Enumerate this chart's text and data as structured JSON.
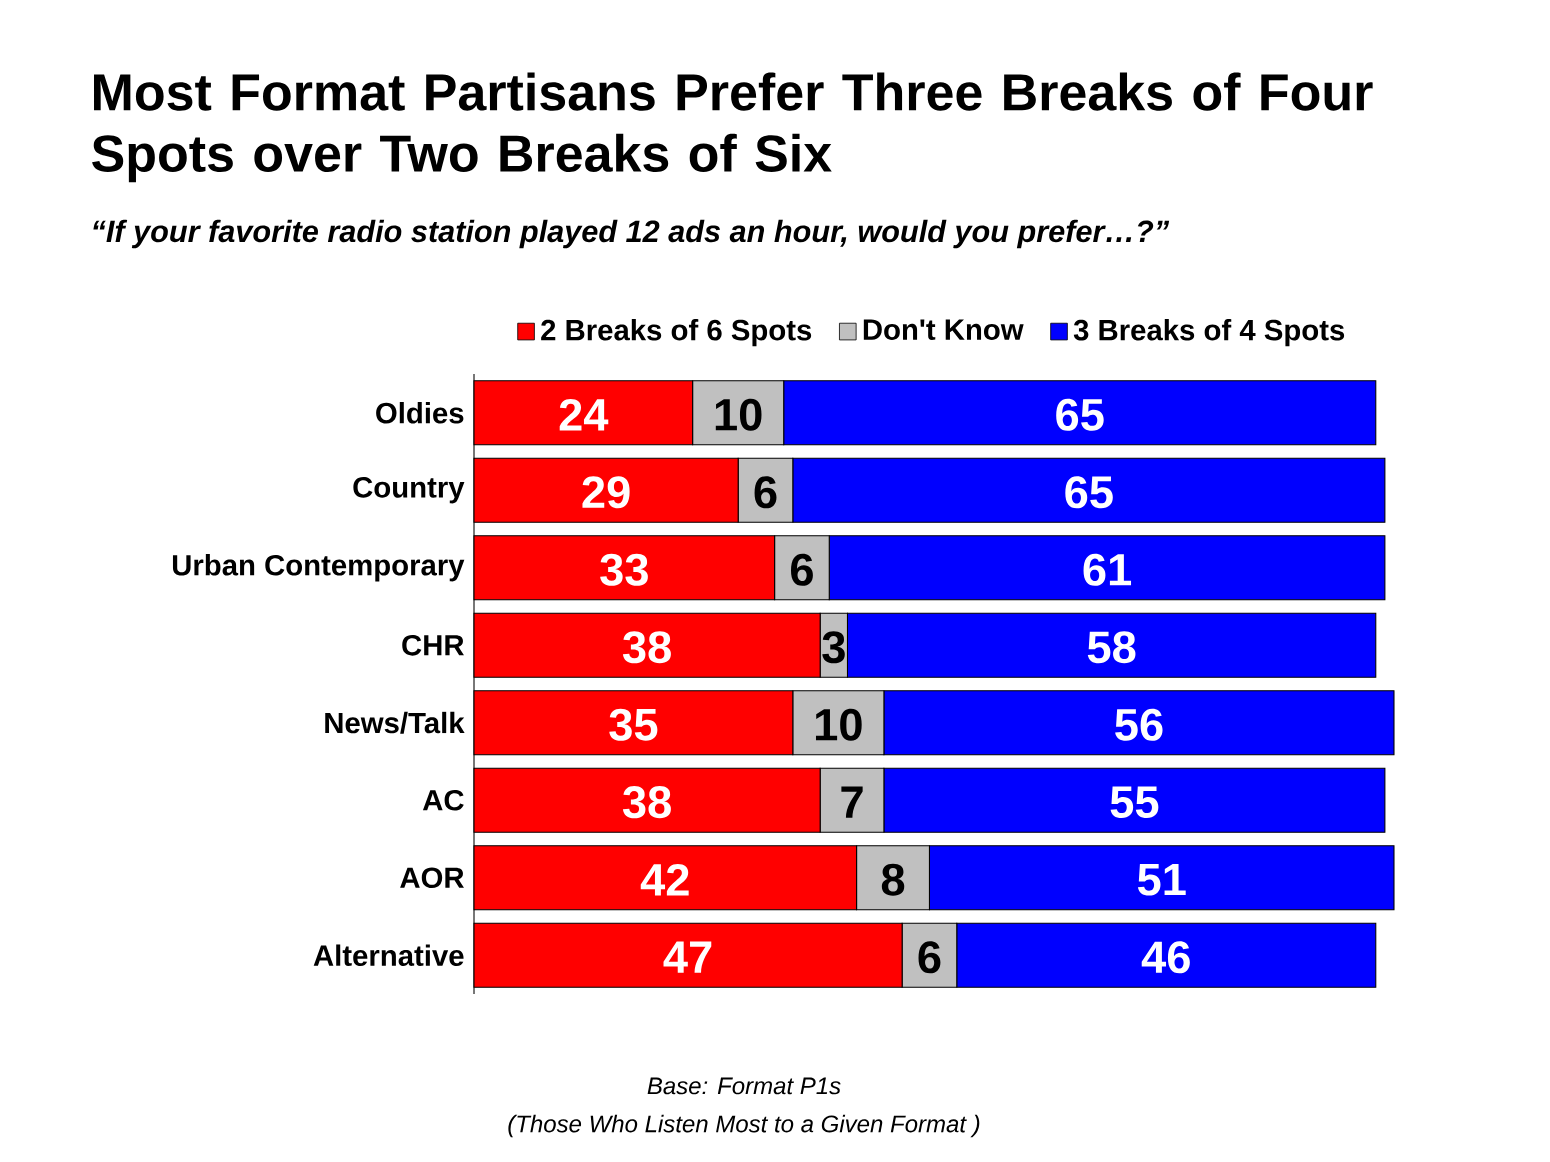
{
  "chart_data": {
    "type": "bar",
    "orientation": "horizontal",
    "stacked": true,
    "data_labels": true,
    "legend": "top",
    "title": "Most Format Partisans Prefer Three Breaks of Four Spots over Two Breaks of Six",
    "subtitle": "“If your favorite radio station played 12 ads an hour, would you prefer…?”",
    "categories": [
      "Oldies",
      "Country",
      "Urban Contemporary",
      "CHR",
      "News/Talk",
      "AC",
      "AOR",
      "Alternative"
    ],
    "series": [
      {
        "name": "2 Breaks of 6 Spots",
        "color": "#ff0000",
        "values": [
          24,
          29,
          33,
          38,
          35,
          38,
          42,
          47
        ]
      },
      {
        "name": "Don't Know",
        "color": "#c0c0c0",
        "values": [
          10,
          6,
          6,
          3,
          10,
          7,
          8,
          6
        ]
      },
      {
        "name": "3 Breaks of 4 Spots",
        "color": "#0000ff",
        "values": [
          65,
          65,
          61,
          58,
          56,
          55,
          51,
          46
        ]
      }
    ],
    "annotations": [
      "Base:  Format P1s",
      "(Those Who Listen Most to a Given Format )"
    ]
  }
}
